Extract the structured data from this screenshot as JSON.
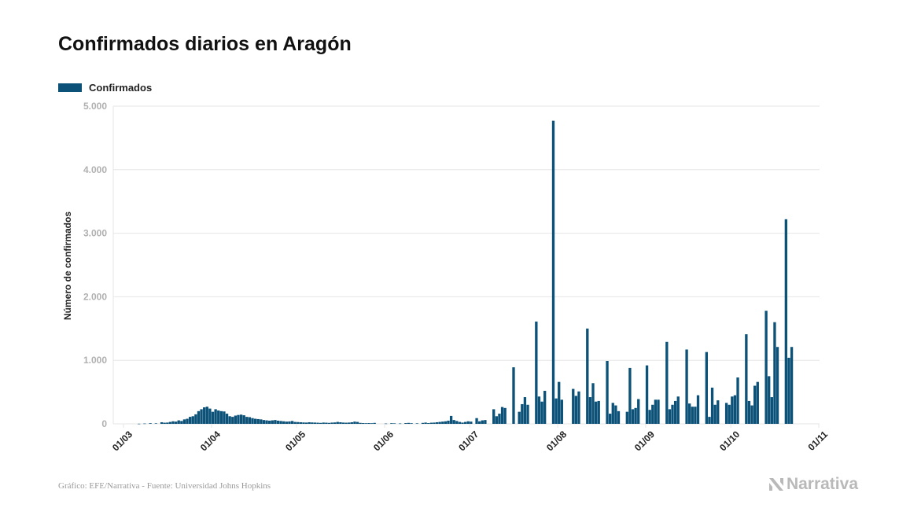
{
  "title": "Confirmados diarios en Aragón",
  "footer": "Gráfico: EFE/Narrativa - Fuente: Universidad Johns Hopkins",
  "logo_text": "Narrativa",
  "colors": {
    "bar": "#0b5178",
    "grid": "#e6e6e6",
    "tick": "#b0b0b0",
    "text": "#222222"
  },
  "chart_data": {
    "type": "bar",
    "title": "Confirmados diarios en Aragón",
    "xlabel": "",
    "ylabel": "Número de confirmados",
    "ylim": [
      0,
      5000
    ],
    "yticks": [
      0,
      1000,
      2000,
      3000,
      4000,
      5000
    ],
    "ytick_labels": [
      "0",
      "1.000",
      "2.000",
      "3.000",
      "4.000",
      "5.000"
    ],
    "x_start": "2020-03-01",
    "x_end": "2020-11-01",
    "xticks": [
      "2020-03-01",
      "2020-04-01",
      "2020-05-01",
      "2020-06-01",
      "2020-07-01",
      "2020-08-01",
      "2020-09-01",
      "2020-10-01",
      "2020-11-01"
    ],
    "xtick_labels": [
      "01/03",
      "01/04",
      "01/05",
      "01/06",
      "01/07",
      "01/08",
      "01/09",
      "01/10",
      "01/11"
    ],
    "legend": "top-left",
    "grid": true,
    "series": [
      {
        "name": "Confirmados",
        "data": [
          [
            "2020-03-06",
            2
          ],
          [
            "2020-03-08",
            5
          ],
          [
            "2020-03-10",
            10
          ],
          [
            "2020-03-12",
            8
          ],
          [
            "2020-03-14",
            25
          ],
          [
            "2020-03-15",
            18
          ],
          [
            "2020-03-16",
            20
          ],
          [
            "2020-03-17",
            30
          ],
          [
            "2020-03-18",
            40
          ],
          [
            "2020-03-19",
            35
          ],
          [
            "2020-03-20",
            55
          ],
          [
            "2020-03-21",
            45
          ],
          [
            "2020-03-22",
            70
          ],
          [
            "2020-03-23",
            80
          ],
          [
            "2020-03-24",
            110
          ],
          [
            "2020-03-25",
            120
          ],
          [
            "2020-03-26",
            150
          ],
          [
            "2020-03-27",
            200
          ],
          [
            "2020-03-28",
            230
          ],
          [
            "2020-03-29",
            260
          ],
          [
            "2020-03-30",
            270
          ],
          [
            "2020-03-31",
            240
          ],
          [
            "2020-04-01",
            190
          ],
          [
            "2020-04-02",
            230
          ],
          [
            "2020-04-03",
            210
          ],
          [
            "2020-04-04",
            200
          ],
          [
            "2020-04-05",
            195
          ],
          [
            "2020-04-06",
            160
          ],
          [
            "2020-04-07",
            120
          ],
          [
            "2020-04-08",
            110
          ],
          [
            "2020-04-09",
            130
          ],
          [
            "2020-04-10",
            140
          ],
          [
            "2020-04-11",
            145
          ],
          [
            "2020-04-12",
            135
          ],
          [
            "2020-04-13",
            110
          ],
          [
            "2020-04-14",
            105
          ],
          [
            "2020-04-15",
            90
          ],
          [
            "2020-04-16",
            80
          ],
          [
            "2020-04-17",
            75
          ],
          [
            "2020-04-18",
            70
          ],
          [
            "2020-04-19",
            60
          ],
          [
            "2020-04-20",
            55
          ],
          [
            "2020-04-21",
            50
          ],
          [
            "2020-04-22",
            55
          ],
          [
            "2020-04-23",
            60
          ],
          [
            "2020-04-24",
            50
          ],
          [
            "2020-04-25",
            45
          ],
          [
            "2020-04-26",
            40
          ],
          [
            "2020-04-27",
            35
          ],
          [
            "2020-04-28",
            38
          ],
          [
            "2020-04-29",
            45
          ],
          [
            "2020-04-30",
            30
          ],
          [
            "2020-05-01",
            28
          ],
          [
            "2020-05-02",
            25
          ],
          [
            "2020-05-03",
            22
          ],
          [
            "2020-05-04",
            20
          ],
          [
            "2020-05-05",
            25
          ],
          [
            "2020-05-06",
            22
          ],
          [
            "2020-05-07",
            20
          ],
          [
            "2020-05-08",
            18
          ],
          [
            "2020-05-09",
            15
          ],
          [
            "2020-05-10",
            20
          ],
          [
            "2020-05-11",
            18
          ],
          [
            "2020-05-12",
            15
          ],
          [
            "2020-05-13",
            20
          ],
          [
            "2020-05-14",
            22
          ],
          [
            "2020-05-15",
            30
          ],
          [
            "2020-05-16",
            25
          ],
          [
            "2020-05-17",
            20
          ],
          [
            "2020-05-18",
            18
          ],
          [
            "2020-05-19",
            20
          ],
          [
            "2020-05-20",
            25
          ],
          [
            "2020-05-21",
            35
          ],
          [
            "2020-05-22",
            30
          ],
          [
            "2020-05-23",
            15
          ],
          [
            "2020-05-24",
            12
          ],
          [
            "2020-05-25",
            10
          ],
          [
            "2020-05-26",
            12
          ],
          [
            "2020-05-27",
            10
          ],
          [
            "2020-05-28",
            15
          ],
          [
            "2020-06-01",
            5
          ],
          [
            "2020-06-03",
            10
          ],
          [
            "2020-06-04",
            8
          ],
          [
            "2020-06-06",
            6
          ],
          [
            "2020-06-08",
            12
          ],
          [
            "2020-06-09",
            15
          ],
          [
            "2020-06-10",
            10
          ],
          [
            "2020-06-12",
            8
          ],
          [
            "2020-06-14",
            15
          ],
          [
            "2020-06-15",
            20
          ],
          [
            "2020-06-16",
            12
          ],
          [
            "2020-06-17",
            18
          ],
          [
            "2020-06-18",
            20
          ],
          [
            "2020-06-19",
            25
          ],
          [
            "2020-06-20",
            30
          ],
          [
            "2020-06-21",
            35
          ],
          [
            "2020-06-22",
            40
          ],
          [
            "2020-06-23",
            50
          ],
          [
            "2020-06-24",
            125
          ],
          [
            "2020-06-25",
            60
          ],
          [
            "2020-06-26",
            45
          ],
          [
            "2020-06-27",
            30
          ],
          [
            "2020-06-28",
            20
          ],
          [
            "2020-06-29",
            30
          ],
          [
            "2020-06-30",
            40
          ],
          [
            "2020-07-01",
            35
          ],
          [
            "2020-07-03",
            90
          ],
          [
            "2020-07-04",
            40
          ],
          [
            "2020-07-05",
            55
          ],
          [
            "2020-07-06",
            60
          ],
          [
            "2020-07-09",
            230
          ],
          [
            "2020-07-10",
            120
          ],
          [
            "2020-07-11",
            160
          ],
          [
            "2020-07-12",
            265
          ],
          [
            "2020-07-13",
            250
          ],
          [
            "2020-07-16",
            890
          ],
          [
            "2020-07-18",
            190
          ],
          [
            "2020-07-19",
            310
          ],
          [
            "2020-07-20",
            420
          ],
          [
            "2020-07-21",
            300
          ],
          [
            "2020-07-24",
            1610
          ],
          [
            "2020-07-25",
            430
          ],
          [
            "2020-07-26",
            350
          ],
          [
            "2020-07-27",
            520
          ],
          [
            "2020-07-30",
            4770
          ],
          [
            "2020-07-31",
            400
          ],
          [
            "2020-08-01",
            660
          ],
          [
            "2020-08-02",
            380
          ],
          [
            "2020-08-06",
            550
          ],
          [
            "2020-08-07",
            440
          ],
          [
            "2020-08-08",
            510
          ],
          [
            "2020-08-11",
            1500
          ],
          [
            "2020-08-12",
            420
          ],
          [
            "2020-08-13",
            640
          ],
          [
            "2020-08-14",
            350
          ],
          [
            "2020-08-15",
            360
          ],
          [
            "2020-08-18",
            990
          ],
          [
            "2020-08-19",
            160
          ],
          [
            "2020-08-20",
            330
          ],
          [
            "2020-08-21",
            290
          ],
          [
            "2020-08-22",
            200
          ],
          [
            "2020-08-25",
            190
          ],
          [
            "2020-08-26",
            880
          ],
          [
            "2020-08-27",
            230
          ],
          [
            "2020-08-28",
            250
          ],
          [
            "2020-08-29",
            390
          ],
          [
            "2020-09-01",
            920
          ],
          [
            "2020-09-02",
            220
          ],
          [
            "2020-09-03",
            300
          ],
          [
            "2020-09-04",
            380
          ],
          [
            "2020-09-05",
            380
          ],
          [
            "2020-09-08",
            1290
          ],
          [
            "2020-09-09",
            230
          ],
          [
            "2020-09-10",
            300
          ],
          [
            "2020-09-11",
            360
          ],
          [
            "2020-09-12",
            430
          ],
          [
            "2020-09-15",
            1170
          ],
          [
            "2020-09-16",
            320
          ],
          [
            "2020-09-17",
            270
          ],
          [
            "2020-09-18",
            270
          ],
          [
            "2020-09-19",
            450
          ],
          [
            "2020-09-22",
            1130
          ],
          [
            "2020-09-23",
            110
          ],
          [
            "2020-09-24",
            570
          ],
          [
            "2020-09-25",
            300
          ],
          [
            "2020-09-26",
            370
          ],
          [
            "2020-09-29",
            330
          ],
          [
            "2020-09-30",
            300
          ],
          [
            "2020-10-01",
            430
          ],
          [
            "2020-10-02",
            450
          ],
          [
            "2020-10-03",
            730
          ],
          [
            "2020-10-06",
            1410
          ],
          [
            "2020-10-07",
            360
          ],
          [
            "2020-10-08",
            290
          ],
          [
            "2020-10-09",
            600
          ],
          [
            "2020-10-10",
            660
          ],
          [
            "2020-10-13",
            1780
          ],
          [
            "2020-10-14",
            750
          ],
          [
            "2020-10-15",
            420
          ],
          [
            "2020-10-16",
            1600
          ],
          [
            "2020-10-17",
            1210
          ],
          [
            "2020-10-20",
            3220
          ],
          [
            "2020-10-21",
            1040
          ],
          [
            "2020-10-22",
            1210
          ]
        ]
      }
    ]
  }
}
